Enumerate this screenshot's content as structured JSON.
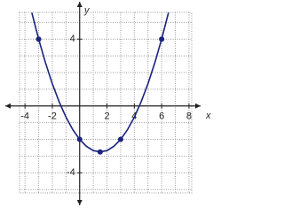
{
  "chart_data": {
    "type": "line",
    "xlabel": "x",
    "ylabel": "y",
    "xlim": [
      -4.4,
      8.2
    ],
    "ylim": [
      -5.2,
      5.6
    ],
    "xticks": [
      -4,
      -2,
      2,
      4,
      6,
      8
    ],
    "yticks": [
      -4,
      4
    ],
    "grid": true,
    "series": [
      {
        "color": "#1a237e",
        "markers": false,
        "x": [
          -3.5,
          -3,
          -2.5,
          -2,
          -1.5,
          -1,
          -0.5,
          0,
          0.5,
          1,
          1.5,
          2,
          2.5,
          3,
          3.5,
          4,
          4.5,
          5,
          5.5,
          6,
          6.5
        ],
        "values": [
          5.58,
          4,
          2.58,
          1.33,
          0.25,
          -0.67,
          -1.42,
          -2,
          -2.42,
          -2.67,
          -2.75,
          -2.67,
          -2.42,
          -2,
          -1.42,
          -0.67,
          0.25,
          1.33,
          2.58,
          4,
          5.58
        ]
      },
      {
        "color": "#1a237e",
        "markers": true,
        "line": false,
        "x": [
          -3,
          0,
          1.5,
          3,
          6
        ],
        "values": [
          4,
          -2,
          -2.75,
          -2,
          4
        ]
      }
    ]
  }
}
